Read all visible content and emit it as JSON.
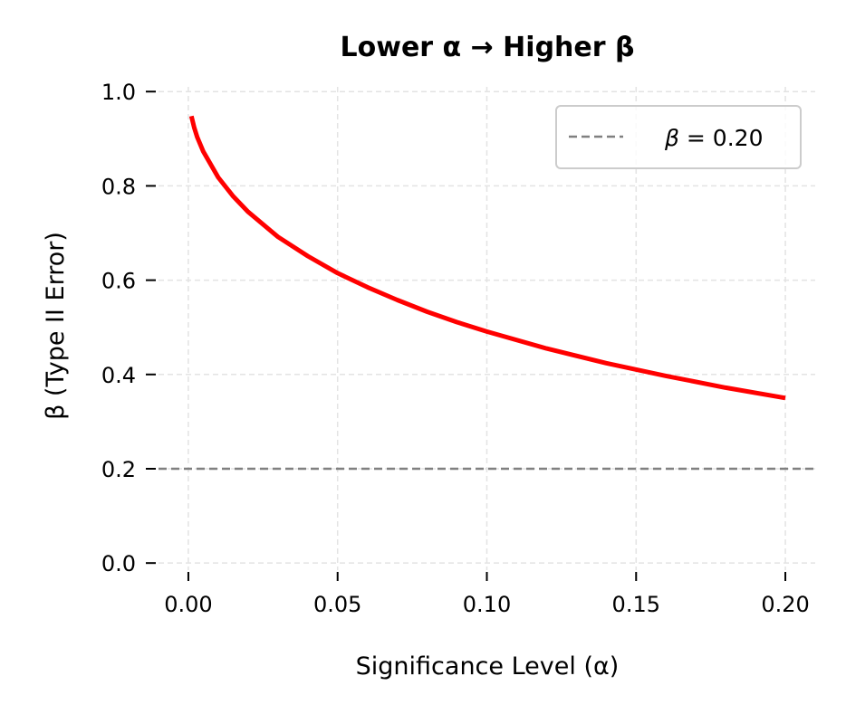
{
  "chart_data": {
    "type": "line",
    "title": "Lower α → Higher β",
    "xlabel": "Significance Level (α)",
    "ylabel": "β (Type II Error)",
    "xlim": [
      -0.01,
      0.21
    ],
    "ylim": [
      -0.015,
      1.01
    ],
    "xticks": [
      0.0,
      0.05,
      0.1,
      0.15,
      0.2
    ],
    "xtick_labels": [
      "0.00",
      "0.05",
      "0.10",
      "0.15",
      "0.20"
    ],
    "yticks": [
      0.0,
      0.2,
      0.4,
      0.6,
      0.8,
      1.0
    ],
    "ytick_labels": [
      "0.0",
      "0.2",
      "0.4",
      "0.6",
      "0.8",
      "1.0"
    ],
    "grid": true,
    "legend_placement": "upper-right",
    "series": [
      {
        "color": "#ff0000",
        "style": "solid",
        "x": [
          0.001,
          0.002,
          0.003,
          0.005,
          0.01,
          0.015,
          0.02,
          0.03,
          0.04,
          0.05,
          0.06,
          0.07,
          0.08,
          0.09,
          0.1,
          0.12,
          0.14,
          0.16,
          0.18,
          0.2
        ],
        "y": [
          0.948,
          0.923,
          0.903,
          0.873,
          0.818,
          0.778,
          0.745,
          0.692,
          0.651,
          0.615,
          0.585,
          0.558,
          0.533,
          0.511,
          0.491,
          0.455,
          0.424,
          0.397,
          0.372,
          0.35
        ]
      }
    ],
    "reference_lines": [
      {
        "name": "β = 0.20",
        "y": 0.2,
        "color": "#808080",
        "style": "dashed"
      }
    ],
    "legend": [
      {
        "label_symbol": "β",
        "label_rest": " = 0.20"
      }
    ]
  }
}
